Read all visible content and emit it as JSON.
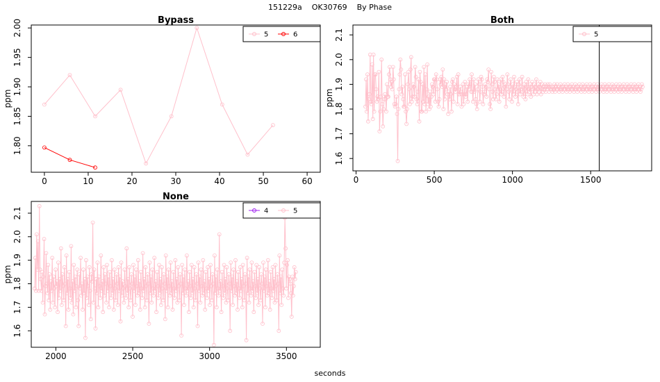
{
  "header": {
    "run_id": "151229a",
    "instrument": "OK30769",
    "grouping": "By Phase"
  },
  "x_axis_label": "seconds",
  "y_axis_label": "ppm",
  "colors": {
    "series_4": "#a020f0",
    "series_5": "#ffc0cb",
    "series_6": "#ff0000",
    "axis": "#000000"
  },
  "chart_data": [
    {
      "type": "line",
      "title": "Bypass",
      "ylabel": "ppm",
      "xlim": [
        -3,
        63
      ],
      "ylim": [
        1.755,
        2.005
      ],
      "xticks": [
        0,
        10,
        20,
        30,
        40,
        50,
        60
      ],
      "yticks": [
        1.8,
        1.85,
        1.9,
        1.95,
        2.0
      ],
      "ytick_labels": [
        "1.80",
        "1.85",
        "1.90",
        "1.95",
        "2.00"
      ],
      "legend": "top-right",
      "series": [
        {
          "name": "5",
          "color": "#ffc0cb",
          "x": [
            0,
            5.8,
            11.6,
            17.4,
            23.2,
            29.0,
            34.8,
            40.6,
            46.4,
            52.2
          ],
          "y": [
            1.87,
            1.92,
            1.85,
            1.895,
            1.77,
            1.85,
            2.0,
            1.87,
            1.785,
            1.835
          ]
        },
        {
          "name": "6",
          "color": "#ff0000",
          "x": [
            0,
            5.8,
            11.6
          ],
          "y": [
            1.797,
            1.776,
            1.763
          ]
        }
      ]
    },
    {
      "type": "line",
      "title": "Both",
      "ylabel": "ppm",
      "xlim": [
        -20,
        1890
      ],
      "ylim": [
        1.55,
        2.14
      ],
      "xticks": [
        0,
        500,
        1000,
        1500
      ],
      "yticks": [
        1.6,
        1.7,
        1.8,
        1.9,
        2.0,
        2.1
      ],
      "ytick_labels": [
        "1.6",
        "1.7",
        "1.8",
        "1.9",
        "2.0",
        "2.1"
      ],
      "legend": "top-right",
      "vline_x": 1555,
      "series": [
        {
          "name": "5",
          "color": "#ffc0cb",
          "x_start": 60,
          "x_step": 4.3,
          "y": [
            1.81,
            1.92,
            1.79,
            1.94,
            1.75,
            1.84,
            1.86,
            2.02,
            1.83,
            1.82,
            1.98,
            1.76,
            2.02,
            1.79,
            1.94,
            1.94,
            1.88,
            1.83,
            1.85,
            1.84,
            1.95,
            1.71,
            1.79,
            1.85,
            2.0,
            1.82,
            1.73,
            1.8,
            1.84,
            1.86,
            1.84,
            1.79,
            1.9,
            1.85,
            1.85,
            1.94,
            1.97,
            1.92,
            1.89,
            1.91,
            1.88,
            1.97,
            1.92,
            1.82,
            1.81,
            1.82,
            1.85,
            1.78,
            1.59,
            1.8,
            1.88,
            1.94,
            2.0,
            1.96,
            1.86,
            1.89,
            1.84,
            1.81,
            1.81,
            1.94,
            1.79,
            1.74,
            1.8,
            1.9,
            1.95,
            1.88,
            1.82,
            1.96,
            2.01,
            1.83,
            1.85,
            1.9,
            1.89,
            1.85,
            1.97,
            1.93,
            1.84,
            1.82,
            1.87,
            1.92,
            1.75,
            1.95,
            1.91,
            1.79,
            1.79,
            1.9,
            1.83,
            1.97,
            1.82,
            1.94,
            1.79,
            1.88,
            1.98,
            1.82,
            1.85,
            1.8,
            1.87,
            1.81,
            1.85,
            1.9,
            1.89,
            1.86,
            1.92,
            1.92,
            1.83,
            1.94,
            1.92,
            1.88,
            1.83,
            1.81,
            1.84,
            1.92,
            1.9,
            1.93,
            1.89,
            1.96,
            1.8,
            1.92,
            1.84,
            1.9,
            1.88,
            1.91,
            1.86,
            1.78,
            1.87,
            1.84,
            1.89,
            1.86,
            1.79,
            1.91,
            1.92,
            1.83,
            1.9,
            1.88,
            1.87,
            1.89,
            1.93,
            1.82,
            1.94,
            1.86,
            1.86,
            1.89,
            1.87,
            1.81,
            1.86,
            1.9,
            1.82,
            1.86,
            1.91,
            1.85,
            1.86,
            1.89,
            1.83,
            1.9,
            1.88,
            1.92,
            1.9,
            1.87,
            1.94,
            1.87,
            1.83,
            1.92,
            1.87,
            1.9,
            1.84,
            1.82,
            1.8,
            1.88,
            1.92,
            1.9,
            1.83,
            1.87,
            1.93,
            1.92,
            1.89,
            1.82,
            1.86,
            1.87,
            1.9,
            1.89,
            1.85,
            1.92,
            1.91,
            1.96,
            1.88,
            1.82,
            1.8,
            1.95,
            1.9,
            1.87,
            1.84,
            1.93,
            1.91,
            1.88,
            1.84,
            1.86,
            1.92,
            1.88,
            1.9,
            1.83,
            1.88,
            1.92,
            1.86,
            1.87,
            1.93,
            1.91,
            1.85,
            1.89,
            1.9,
            1.81,
            1.88,
            1.94,
            1.9,
            1.87,
            1.84,
            1.89,
            1.92,
            1.88,
            1.83,
            1.9,
            1.86,
            1.93,
            1.89,
            1.85,
            1.88,
            1.91,
            1.87,
            1.82,
            1.9,
            1.92,
            1.86,
            1.88,
            1.89,
            1.93,
            1.87,
            1.85,
            1.9,
            1.88,
            1.84,
            1.91,
            1.89,
            1.86,
            1.92,
            1.88,
            1.87,
            1.9,
            1.85,
            1.89,
            1.91,
            1.88,
            1.86,
            1.9,
            1.87,
            1.89,
            1.92,
            1.86,
            1.88,
            1.9,
            1.87,
            1.89,
            1.91,
            1.86,
            1.88,
            1.9,
            1.87,
            1.89,
            1.88,
            1.9,
            1.87,
            1.89,
            1.88,
            1.9,
            1.89,
            1.87,
            1.9,
            1.88,
            1.89,
            1.88,
            1.87,
            1.89,
            1.88,
            1.9,
            1.87,
            1.89,
            1.88,
            1.9,
            1.88,
            1.89,
            1.87,
            1.88,
            1.9,
            1.89,
            1.88,
            1.87,
            1.89,
            1.88,
            1.9,
            1.88,
            1.89,
            1.87,
            1.88,
            1.9,
            1.89,
            1.88,
            1.87,
            1.89,
            1.88,
            1.9,
            1.88,
            1.89,
            1.87,
            1.88,
            1.9,
            1.89,
            1.88,
            1.87,
            1.89,
            1.88,
            1.9,
            1.88,
            1.89,
            1.87,
            1.88,
            1.9,
            1.89,
            1.88,
            1.87,
            1.89,
            1.88,
            1.9,
            1.88,
            1.89,
            1.87,
            1.88,
            1.9,
            1.89,
            1.88,
            1.87,
            1.89,
            1.88,
            1.9,
            1.88,
            1.89,
            1.87,
            1.88,
            1.9,
            1.89,
            1.88,
            1.87,
            1.89,
            1.88,
            1.9,
            1.88,
            1.89,
            1.87,
            1.88,
            1.9,
            1.89,
            1.88,
            1.87,
            1.89,
            1.88,
            1.9,
            1.88,
            1.89,
            1.87,
            1.88,
            1.9,
            1.89,
            1.88,
            1.87,
            1.89,
            1.88,
            1.9,
            1.88,
            1.89,
            1.87,
            1.88,
            1.9,
            1.89,
            1.88,
            1.87,
            1.89,
            1.88,
            1.9,
            1.88,
            1.89,
            1.87,
            1.88,
            1.9,
            1.89,
            1.88,
            1.87,
            1.89,
            1.88,
            1.9,
            1.88,
            1.89,
            1.87,
            1.88,
            1.9,
            1.89,
            1.88,
            1.87,
            1.89,
            1.88,
            1.9,
            1.88,
            1.89,
            1.87,
            1.88,
            1.9,
            1.89
          ]
        }
      ]
    },
    {
      "type": "line",
      "title": "None",
      "ylabel": "ppm",
      "xlim": [
        1840,
        3720
      ],
      "ylim": [
        1.53,
        2.15
      ],
      "xticks": [
        2000,
        2500,
        3000,
        3500
      ],
      "yticks": [
        1.6,
        1.7,
        1.8,
        1.9,
        2.0,
        2.1
      ],
      "ytick_labels": [
        "1.6",
        "1.7",
        "1.8",
        "1.9",
        "2.0",
        "2.1"
      ],
      "legend": "top-right",
      "series": [
        {
          "name": "4",
          "color": "#a020f0",
          "x": [],
          "y": []
        },
        {
          "name": "5",
          "color": "#ffc0cb",
          "x_start": 1862,
          "x_step": 4.4,
          "y": [
            1.78,
            1.91,
            1.77,
            2.01,
            1.86,
            1.98,
            1.77,
            2.13,
            1.86,
            1.82,
            1.77,
            1.85,
            1.72,
            1.83,
            1.99,
            1.67,
            1.79,
            1.93,
            1.8,
            1.76,
            1.88,
            1.73,
            1.84,
            1.69,
            1.81,
            1.77,
            1.91,
            1.72,
            1.83,
            1.78,
            1.7,
            1.86,
            1.79,
            1.81,
            1.68,
            1.89,
            1.74,
            1.82,
            1.77,
            1.95,
            1.71,
            1.84,
            1.79,
            1.73,
            1.87,
            1.8,
            1.62,
            1.92,
            1.76,
            1.82,
            1.69,
            1.85,
            1.78,
            1.74,
            1.96,
            1.72,
            1.81,
            1.67,
            1.88,
            1.77,
            1.83,
            1.7,
            1.79,
            1.86,
            1.73,
            1.62,
            1.84,
            1.78,
            1.91,
            1.75,
            1.8,
            1.69,
            1.86,
            1.76,
            1.82,
            1.57,
            1.9,
            1.74,
            1.83,
            1.79,
            1.71,
            1.87,
            1.77,
            1.65,
            1.84,
            1.81,
            2.06,
            1.72,
            1.86,
            1.78,
            1.61,
            1.82,
            1.76,
            1.89,
            1.7,
            1.83,
            1.79,
            1.74,
            1.92,
            1.77,
            1.81,
            1.68,
            1.87,
            1.75,
            1.84,
            1.8,
            1.72,
            1.88,
            1.77,
            1.83,
            1.7,
            1.85,
            1.79,
            1.74,
            1.9,
            1.76,
            1.82,
            1.69,
            1.86,
            1.78,
            1.73,
            1.84,
            1.8,
            1.71,
            1.87,
            1.77,
            1.83,
            1.64,
            1.89,
            1.75,
            1.81,
            1.78,
            1.72,
            1.86,
            1.79,
            1.74,
            1.95,
            1.76,
            1.82,
            1.7,
            1.87,
            1.78,
            1.73,
            1.84,
            1.8,
            1.66,
            1.88,
            1.77,
            1.83,
            1.71,
            1.86,
            1.79,
            1.75,
            1.9,
            1.76,
            1.81,
            1.69,
            1.85,
            1.78,
            1.74,
            1.93,
            1.77,
            1.82,
            1.7,
            1.87,
            1.79,
            1.73,
            1.84,
            1.8,
            1.63,
            1.89,
            1.76,
            1.83,
            1.72,
            1.86,
            1.78,
            1.75,
            1.91,
            1.77,
            1.81,
            1.68,
            1.85,
            1.79,
            1.74,
            1.88,
            1.76,
            1.82,
            1.71,
            1.87,
            1.78,
            1.73,
            1.84,
            1.8,
            1.65,
            1.92,
            1.77,
            1.83,
            1.7,
            1.86,
            1.79,
            1.75,
            1.89,
            1.76,
            1.81,
            1.69,
            1.85,
            1.78,
            1.74,
            1.9,
            1.77,
            1.82,
            1.72,
            1.87,
            1.79,
            1.73,
            1.84,
            1.8,
            1.58,
            1.88,
            1.76,
            1.83,
            1.71,
            1.86,
            1.78,
            1.75,
            1.92,
            1.77,
            1.81,
            1.68,
            1.85,
            1.79,
            1.74,
            1.88,
            1.76,
            1.82,
            1.7,
            1.87,
            1.78,
            1.73,
            1.84,
            1.8,
            1.62,
            1.89,
            1.77,
            1.83,
            1.72,
            1.86,
            1.79,
            1.75,
            1.9,
            1.76,
            1.81,
            1.69,
            1.85,
            1.78,
            1.74,
            1.87,
            1.77,
            1.82,
            1.71,
            1.88,
            1.79,
            1.73,
            1.84,
            1.8,
            1.54,
            1.92,
            1.76,
            1.83,
            1.7,
            1.86,
            1.78,
            1.75,
            2.01,
            1.77,
            1.81,
            1.68,
            1.85,
            1.79,
            1.74,
            1.88,
            1.76,
            1.82,
            1.72,
            1.87,
            1.78,
            1.73,
            1.84,
            1.8,
            1.6,
            1.89,
            1.77,
            1.83,
            1.71,
            1.86,
            1.79,
            1.75,
            1.9,
            1.76,
            1.81,
            1.69,
            1.85,
            1.78,
            1.74,
            1.87,
            1.77,
            1.82,
            1.7,
            1.88,
            1.79,
            1.73,
            1.84,
            1.8,
            1.56,
            1.91,
            1.76,
            1.83,
            1.72,
            1.86,
            1.78,
            1.75,
            1.89,
            1.77,
            1.81,
            1.68,
            1.85,
            1.79,
            1.74,
            1.88,
            1.76,
            1.82,
            1.71,
            1.87,
            1.78,
            1.73,
            1.84,
            1.8,
            1.63,
            1.89,
            1.77,
            1.83,
            1.7,
            1.86,
            1.79,
            1.75,
            1.9,
            1.76,
            1.81,
            1.69,
            1.85,
            1.78,
            1.74,
            1.87,
            1.77,
            1.82,
            1.72,
            1.88,
            1.79,
            1.73,
            1.84,
            1.8,
            1.6,
            1.92,
            1.76,
            1.83,
            1.71,
            1.86,
            1.78,
            1.75,
            1.89,
            2.08,
            1.95,
            1.78,
            1.88,
            1.9,
            1.74,
            1.83,
            1.82,
            1.8,
            1.76,
            1.66,
            1.83,
            1.75,
            1.79,
            1.87,
            1.82,
            1.85
          ]
        }
      ]
    }
  ]
}
